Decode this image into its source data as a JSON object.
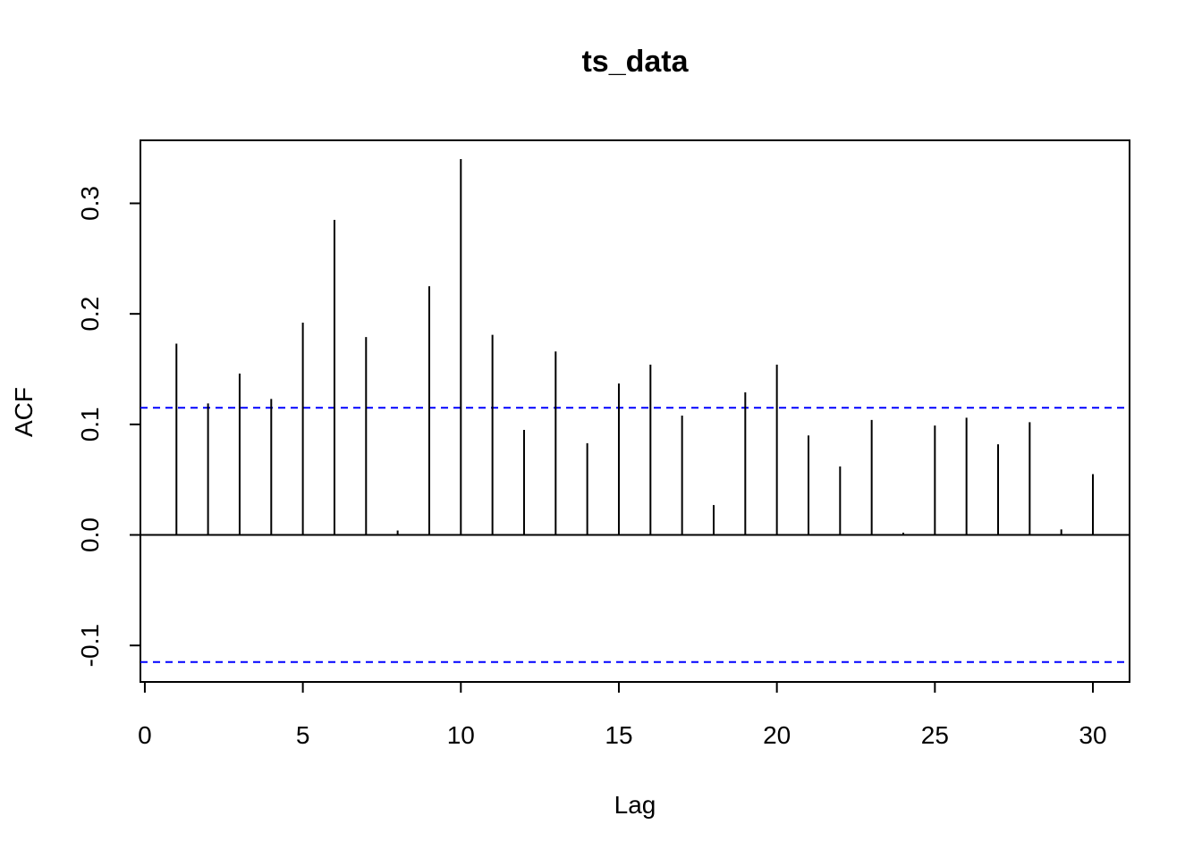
{
  "chart_data": {
    "type": "acf",
    "title": "ts_data",
    "x_label": "Lag",
    "y_label": "ACF",
    "x": [
      1,
      2,
      3,
      4,
      5,
      6,
      7,
      8,
      9,
      10,
      11,
      12,
      13,
      14,
      15,
      16,
      17,
      18,
      19,
      20,
      21,
      22,
      23,
      24,
      25,
      26,
      27,
      28,
      29,
      30
    ],
    "values": [
      0.173,
      0.119,
      0.146,
      0.123,
      0.192,
      0.285,
      0.179,
      0.004,
      0.225,
      0.34,
      0.181,
      0.095,
      0.166,
      0.083,
      0.137,
      0.154,
      0.108,
      0.027,
      0.129,
      0.154,
      0.09,
      0.062,
      0.104,
      0.002,
      0.099,
      0.106,
      0.082,
      0.102,
      0.005,
      0.055
    ],
    "color": "#000000",
    "conf_limits": [
      0.115,
      -0.115
    ],
    "conf_color": "#0000ff",
    "xlim": [
      -0.14,
      31.16
    ],
    "ylim": [
      -0.133,
      0.357
    ],
    "xticks": [
      0,
      5,
      10,
      15,
      20,
      25,
      30
    ],
    "yticks": [
      -0.1,
      {
        "value": 0,
        "label": "0.0"
      },
      0.1,
      0.2,
      0.3
    ]
  }
}
